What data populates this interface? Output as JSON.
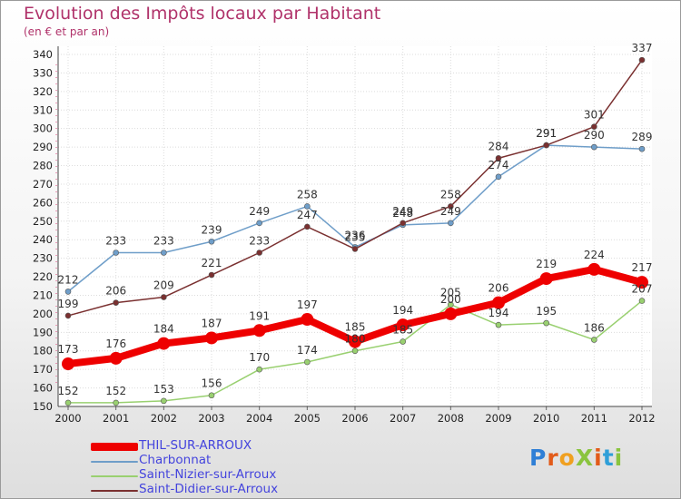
{
  "title": "Evolution des Impôts locaux par Habitant",
  "subtitle": "(en € et par an)",
  "logo": {
    "letters": [
      {
        "ch": "P",
        "color": "#2f7fd6"
      },
      {
        "ch": "r",
        "color": "#e25b1a"
      },
      {
        "ch": "o",
        "color": "#f0a020"
      },
      {
        "ch": "X",
        "color": "#8ac43f"
      },
      {
        "ch": "i",
        "color": "#e25b1a"
      },
      {
        "ch": "t",
        "color": "#2f9fd8"
      },
      {
        "ch": "i",
        "color": "#8ac43f"
      }
    ]
  },
  "chart_data": {
    "type": "line",
    "title": "Evolution des Impôts locaux par Habitant",
    "subtitle": "(en € et par an)",
    "xlabel": "",
    "ylabel": "",
    "x": [
      "2000",
      "2001",
      "2002",
      "2003",
      "2004",
      "2005",
      "2006",
      "2007",
      "2008",
      "2009",
      "2010",
      "2011",
      "2012"
    ],
    "ylim": [
      150,
      340
    ],
    "yticks": [
      150,
      160,
      170,
      180,
      190,
      200,
      210,
      220,
      230,
      240,
      250,
      260,
      270,
      280,
      290,
      300,
      310,
      320,
      330,
      340
    ],
    "grid": true,
    "legend_position": "bottom-left",
    "series": [
      {
        "name": "THIL-SUR-ARROUX",
        "color": "#ee0000",
        "width": 8,
        "marker": 7,
        "values": [
          173,
          176,
          184,
          187,
          191,
          197,
          185,
          194,
          200,
          206,
          219,
          224,
          217
        ]
      },
      {
        "name": "Charbonnat",
        "color": "#6f9ec9",
        "width": 1.5,
        "marker": 3,
        "values": [
          212,
          233,
          233,
          239,
          249,
          258,
          236,
          248,
          249,
          274,
          291,
          290,
          289
        ]
      },
      {
        "name": "Saint-Nizier-sur-Arroux",
        "color": "#99d070",
        "width": 1.5,
        "marker": 3,
        "values": [
          152,
          152,
          153,
          156,
          170,
          174,
          180,
          185,
          205,
          194,
          195,
          186,
          207
        ]
      },
      {
        "name": "Saint-Didier-sur-Arroux",
        "color": "#7a3030",
        "width": 1.5,
        "marker": 3,
        "values": [
          199,
          206,
          209,
          221,
          233,
          247,
          235,
          249,
          258,
          284,
          291,
          301,
          337
        ]
      }
    ]
  }
}
